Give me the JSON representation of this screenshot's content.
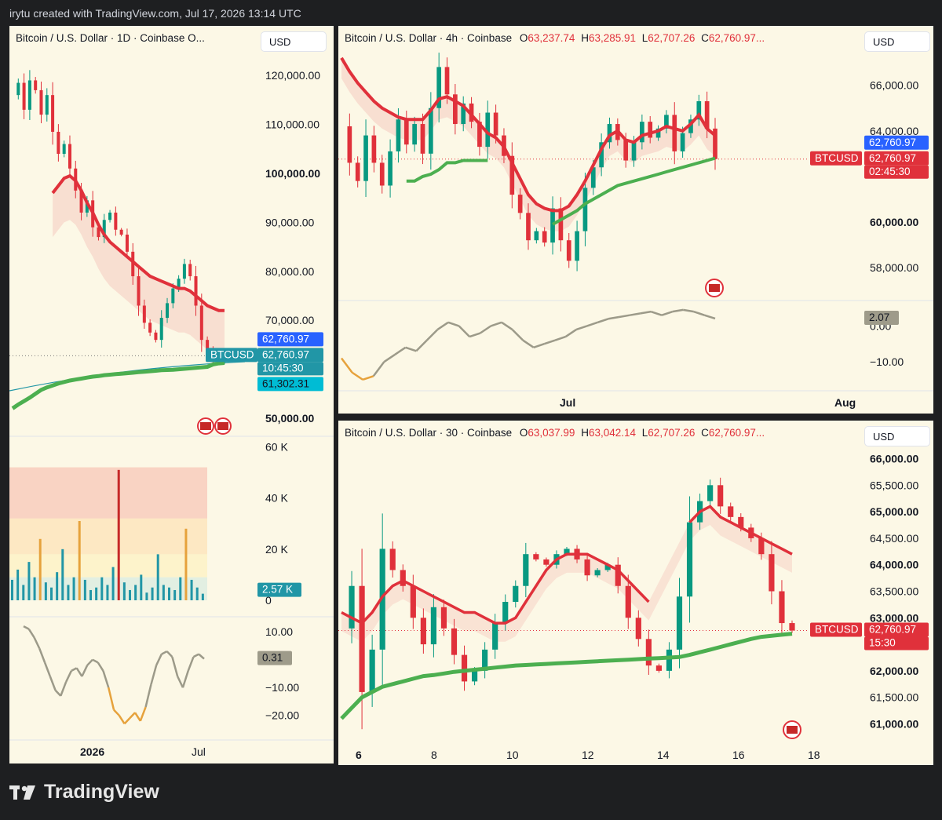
{
  "watermark": "irytu created with TradingView.com, Jul 17, 2026 13:14 UTC",
  "brand": "TradingView",
  "colors": {
    "panel_bg": "#fcf8e6",
    "bull": "#089981",
    "bear": "#e0313b",
    "ma_green": "#4caf50",
    "ma_red": "#e0313b",
    "cross_blue": "#2962ff",
    "teal": "#2196a6",
    "gray_osc": "#9c9a89",
    "orange_osc": "#e6a23c"
  },
  "chart_data": [
    {
      "id": "daily",
      "type": "line",
      "header": "Bitcoin / U.S. Dollar · 1D · Coinbase  O...",
      "currency": "USD",
      "y_ticks": [
        "120,000.00",
        "110,000.00",
        "100,000.00",
        "90,000.00",
        "80,000.00",
        "70,000.00",
        "50,000.00"
      ],
      "ylim": [
        50000,
        125000
      ],
      "x_ticks": [
        "2026",
        "Jul"
      ],
      "symbol_label": "BTCUSD",
      "price_labels": {
        "last": "62,760.97",
        "last_alt": "62,760.97",
        "countdown": "10:45:30",
        "ma_value": "61,302.31"
      },
      "series": [
        {
          "name": "close",
          "values": [
            116000,
            118500,
            113000,
            119000,
            117000,
            112000,
            116000,
            108500,
            104000,
            106000,
            101000,
            96500,
            92000,
            94500,
            89000,
            87000,
            90500,
            92000,
            88500,
            87500,
            84000,
            79000,
            73000,
            69500,
            67500,
            66000,
            70500,
            73500,
            76500,
            78500,
            81500,
            79000,
            73000,
            66000,
            64000,
            62000,
            61500,
            62760.97
          ]
        },
        {
          "name": "ma_long",
          "values": [
            null,
            null,
            null,
            null,
            null,
            null,
            null,
            96000,
            97500,
            99000,
            99500,
            98500,
            96500,
            94000,
            92000,
            89500,
            87500,
            86000,
            85000,
            84000,
            83000,
            82000,
            81000,
            80000,
            79000,
            78500,
            78000,
            77500,
            77000,
            76500,
            76500,
            76000,
            75000,
            74000,
            73000,
            72500,
            72000,
            72000
          ]
        },
        {
          "name": "ma_support",
          "values": [
            52000,
            52800,
            53500,
            54200,
            55000,
            55800,
            56300,
            56700,
            57100,
            57400,
            57700,
            57900,
            58100,
            58300,
            58500,
            58600,
            58800,
            58900,
            59000,
            59100,
            59200,
            59300,
            59400,
            59500,
            59600,
            59700,
            59800,
            59850,
            59900,
            60000,
            60100,
            60200,
            60300,
            60400,
            60500,
            61000,
            61200,
            61302.31
          ]
        }
      ],
      "volume": {
        "y_ticks": [
          "60 K",
          "40 K",
          "20 K",
          "0"
        ],
        "ylim": [
          0,
          62000
        ],
        "last_label": "2.57 K",
        "bars": [
          8000,
          12000,
          6000,
          15000,
          9000,
          24000,
          7000,
          5000,
          11000,
          20000,
          6000,
          9000,
          31000,
          8000,
          4000,
          5000,
          9000,
          6000,
          13000,
          51000,
          7000,
          4000,
          6000,
          10000,
          3000,
          5000,
          18000,
          6000,
          5000,
          4000,
          9000,
          28000,
          8000,
          5000,
          2570
        ]
      },
      "oscillator": {
        "y_ticks": [
          "10.00",
          "−10.00",
          "−20.00"
        ],
        "ylim": [
          -26,
          14
        ],
        "last_label": "0.31",
        "values": [
          12,
          11,
          8,
          4,
          -1,
          -6,
          -11,
          -13,
          -8,
          -4,
          -3,
          -6,
          -2,
          0,
          -1,
          -4,
          -10,
          -18,
          -20,
          -23,
          -21,
          -19,
          -22,
          -17,
          -9,
          -2,
          2,
          3,
          1,
          -6,
          -10,
          -4,
          1,
          2,
          0.31
        ]
      }
    },
    {
      "id": "h4",
      "type": "line",
      "header_prefix": "Bitcoin / U.S. Dollar · 4h · Coinbase",
      "ohlc": {
        "O": "63,237.74",
        "H": "63,285.91",
        "L": "62,707.26",
        "C": "62,760.97..."
      },
      "currency": "USD",
      "y_ticks": [
        "66,000.00",
        "64,000.00",
        "60,000.00",
        "58,000.00"
      ],
      "ylim": [
        56900,
        67400
      ],
      "x_ticks": [
        "Jul",
        "Aug"
      ],
      "symbol_label": "BTCUSD",
      "price_labels": {
        "last": "62,760.97",
        "last_alt": "62,760.97",
        "countdown": "02:45:30"
      },
      "series": [
        {
          "name": "close",
          "values": [
            64200,
            62600,
            61800,
            63800,
            62600,
            61600,
            63100,
            64500,
            63400,
            64300,
            63000,
            65000,
            66800,
            65600,
            64300,
            65200,
            64400,
            63300,
            64800,
            63800,
            62900,
            61200,
            60400,
            59200,
            59600,
            59100,
            60600,
            59200,
            58300,
            59600,
            61500,
            62400,
            63500,
            64300,
            63600,
            62700,
            63500,
            64400,
            63700,
            64100,
            64700,
            63100,
            63900,
            64500,
            65300,
            64100,
            62760.97
          ]
        },
        {
          "name": "ma_red",
          "values": [
            67200,
            66600,
            66100,
            65700,
            65300,
            65000,
            64800,
            64600,
            64500,
            64500,
            64500,
            64900,
            65400,
            65500,
            65300,
            65100,
            64700,
            64300,
            63900,
            63700,
            63300,
            62600,
            61900,
            61200,
            60800,
            60600,
            60500,
            60500,
            60700,
            61200,
            61800,
            62500,
            63200,
            63800,
            64000,
            63600,
            63500,
            63800,
            63900,
            64000,
            64200,
            64100,
            64000,
            64300,
            64700,
            64100,
            63800
          ]
        },
        {
          "name": "ma_green",
          "values": [
            null,
            null,
            null,
            null,
            null,
            null,
            null,
            null,
            61800,
            61800,
            62000,
            62100,
            62300,
            62600,
            62600,
            62700,
            62700,
            62700,
            62700,
            null,
            null,
            null,
            null,
            null,
            null,
            null,
            59900,
            60100,
            60300,
            60500,
            60800,
            61000,
            61200,
            61400,
            61600,
            61700,
            61800,
            61900,
            62000,
            62100,
            62200,
            62300,
            62400,
            62500,
            62600,
            62700,
            62800
          ]
        }
      ],
      "oscillator": {
        "y_ticks": [
          "0.00",
          "−10.00"
        ],
        "ylim": [
          -17,
          6
        ],
        "last_label": "2.07",
        "values": [
          -9,
          -13,
          -15,
          -14,
          -10,
          -8,
          -6,
          -7,
          -4,
          -1,
          1,
          0,
          -3,
          -2,
          0,
          1,
          -1,
          -4,
          -6,
          -5,
          -4,
          -3,
          -1,
          0,
          1,
          2,
          2.5,
          3,
          3.5,
          4,
          3,
          4,
          4.5,
          4,
          3,
          2.07
        ]
      }
    },
    {
      "id": "m30",
      "type": "line",
      "header_prefix": "Bitcoin / U.S. Dollar · 30 · Coinbase",
      "ohlc": {
        "O": "63,037.99",
        "H": "63,042.14",
        "L": "62,707.26",
        "C": "62,760.97..."
      },
      "currency": "USD",
      "y_ticks": [
        "66,000.00",
        "65,500.00",
        "65,000.00",
        "64,500.00",
        "64,000.00",
        "63,500.00",
        "63,000.00",
        "62,000.00",
        "61,500.00",
        "61,000.00"
      ],
      "ylim": [
        60800,
        66200
      ],
      "x_ticks": [
        "6",
        "8",
        "10",
        "12",
        "14",
        "16",
        "18"
      ],
      "symbol_label": "BTCUSD",
      "price_labels": {
        "last": "62,760.97",
        "countdown": "15:30"
      },
      "series": [
        {
          "name": "close",
          "values": [
            62800,
            63600,
            61600,
            62400,
            64300,
            63900,
            63600,
            63000,
            62500,
            63200,
            62800,
            62300,
            61800,
            62000,
            62400,
            62900,
            63300,
            63600,
            64200,
            64100,
            64000,
            64200,
            64300,
            64100,
            63800,
            63900,
            64000,
            63600,
            63000,
            62600,
            62100,
            62000,
            62400,
            63400,
            64800,
            65200,
            65500,
            65100,
            64900,
            64700,
            64500,
            64200,
            63500,
            62900,
            62760.97
          ]
        },
        {
          "name": "ma_red",
          "values": [
            63100,
            63000,
            62900,
            63100,
            63400,
            63600,
            63700,
            63600,
            63500,
            63400,
            63300,
            63200,
            63100,
            63100,
            63000,
            62900,
            62900,
            63000,
            63300,
            63600,
            63900,
            64100,
            64200,
            64200,
            64200,
            64100,
            64000,
            63900,
            63700,
            63500,
            63300,
            null,
            null,
            null,
            64800,
            65000,
            65100,
            64900,
            64800,
            64700,
            64600,
            64500,
            64400,
            64300,
            64200
          ]
        },
        {
          "name": "ma_green",
          "values": [
            61100,
            61300,
            61500,
            61600,
            61700,
            61750,
            61800,
            61850,
            61900,
            61920,
            61950,
            61980,
            62000,
            62020,
            62040,
            62060,
            62080,
            62100,
            62110,
            62120,
            62130,
            62140,
            62150,
            62160,
            62170,
            62180,
            62190,
            62200,
            62210,
            62220,
            62230,
            62240,
            62250,
            62260,
            62300,
            62350,
            62400,
            62450,
            62500,
            62550,
            62600,
            62640,
            62660,
            62680,
            62700
          ]
        }
      ]
    }
  ]
}
